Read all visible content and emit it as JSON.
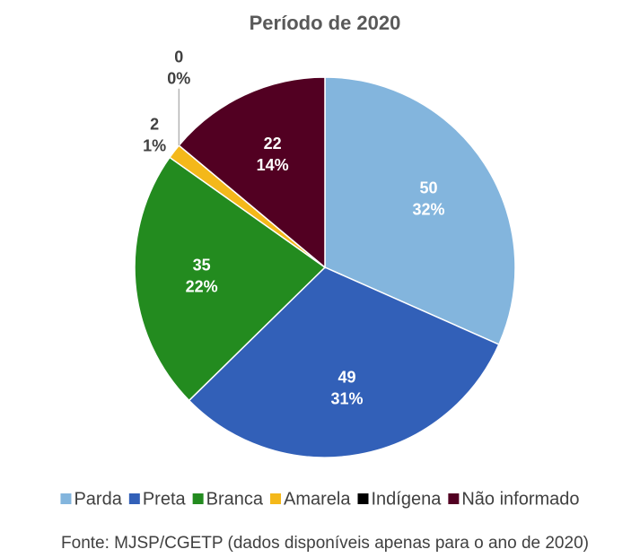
{
  "chart_data": {
    "type": "pie",
    "title": "Período de 2020",
    "categories": [
      "Parda",
      "Preta",
      "Branca",
      "Amarela",
      "Indígena",
      "Não informado"
    ],
    "values": [
      50,
      49,
      35,
      2,
      0,
      22
    ],
    "percent_labels": [
      "32%",
      "31%",
      "22%",
      "1%",
      "0%",
      "14%"
    ],
    "colors": [
      "#83b5dd",
      "#3260b8",
      "#238b1f",
      "#f4b81a",
      "#000000",
      "#520022"
    ],
    "legend": "bottom",
    "source": "Fonte: MJSP/CGETP (dados disponíveis apenas para o ano de 2020)"
  }
}
